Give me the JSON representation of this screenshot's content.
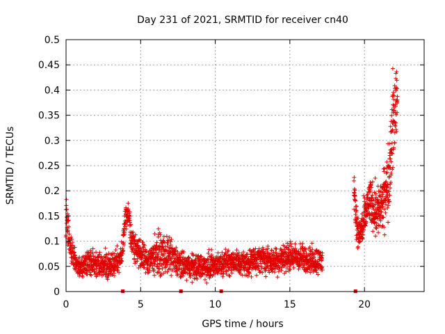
{
  "chart_data": {
    "type": "scatter",
    "title": "Day 231 of 2021, SRMTID for receiver cn40",
    "xlabel": "GPS time / hours",
    "ylabel": "SRMTID / TECUs",
    "xlim": [
      0,
      24
    ],
    "ylim": [
      0,
      0.5
    ],
    "xticks": [
      0,
      5,
      10,
      15,
      20
    ],
    "xtick_labels": [
      "0",
      "5",
      "10",
      "15",
      "20"
    ],
    "yticks": [
      0,
      0.05,
      0.1,
      0.15,
      0.2,
      0.25,
      0.3,
      0.35,
      0.4,
      0.45,
      0.5
    ],
    "ytick_labels": [
      "0",
      "0.05",
      "0.1",
      "0.15",
      "0.2",
      "0.25",
      "0.3",
      "0.35",
      "0.4",
      "0.45",
      "0.5"
    ],
    "grid": true,
    "marker": "+",
    "color": "#e00000",
    "series": [
      {
        "name": "SRMTID",
        "trend": [
          [
            0.0,
            0.145,
            0.03
          ],
          [
            0.1,
            0.13,
            0.03
          ],
          [
            0.3,
            0.09,
            0.025
          ],
          [
            0.6,
            0.06,
            0.015
          ],
          [
            1.0,
            0.045,
            0.012
          ],
          [
            1.5,
            0.06,
            0.02
          ],
          [
            2.0,
            0.055,
            0.02
          ],
          [
            2.5,
            0.05,
            0.02
          ],
          [
            3.0,
            0.05,
            0.018
          ],
          [
            3.5,
            0.06,
            0.02
          ],
          [
            3.8,
            0.08,
            0.015
          ],
          [
            3.9,
            0.13,
            0.02
          ],
          [
            4.0,
            0.15,
            0.02
          ],
          [
            4.2,
            0.155,
            0.02
          ],
          [
            4.4,
            0.1,
            0.02
          ],
          [
            5.0,
            0.07,
            0.025
          ],
          [
            5.5,
            0.06,
            0.02
          ],
          [
            6.0,
            0.075,
            0.03
          ],
          [
            7.0,
            0.07,
            0.025
          ],
          [
            7.7,
            0.05,
            0.02
          ],
          [
            8.5,
            0.05,
            0.018
          ],
          [
            9.5,
            0.05,
            0.02
          ],
          [
            10.3,
            0.055,
            0.015
          ],
          [
            11.0,
            0.06,
            0.02
          ],
          [
            12.0,
            0.055,
            0.018
          ],
          [
            13.0,
            0.065,
            0.02
          ],
          [
            14.0,
            0.06,
            0.02
          ],
          [
            15.0,
            0.07,
            0.02
          ],
          [
            16.0,
            0.065,
            0.02
          ],
          [
            17.2,
            0.06,
            0.02
          ]
        ],
        "late_trend": [
          [
            19.3,
            0.19,
            0.03
          ],
          [
            19.6,
            0.11,
            0.02
          ],
          [
            19.9,
            0.13,
            0.03
          ],
          [
            20.3,
            0.18,
            0.03
          ],
          [
            20.8,
            0.16,
            0.04
          ],
          [
            21.2,
            0.17,
            0.04
          ],
          [
            21.6,
            0.22,
            0.05
          ],
          [
            21.9,
            0.33,
            0.07
          ],
          [
            22.2,
            0.4,
            0.06
          ]
        ],
        "gap_markers_x": [
          3.8,
          7.7,
          10.4,
          19.4
        ]
      }
    ]
  }
}
